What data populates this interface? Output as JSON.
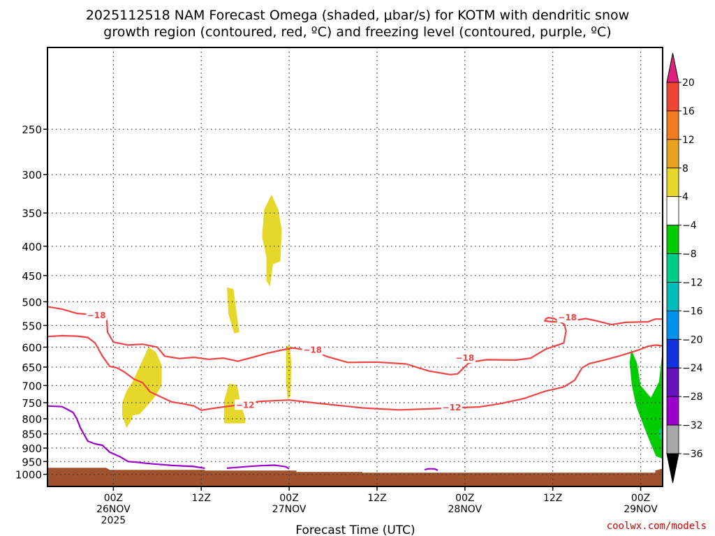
{
  "title": {
    "line1": "2025112518 NAM Forecast Omega (shaded, μbar/s) for KOTM with dendritic snow",
    "line2": "growth region (contoured, red, ºC) and freezing level (contoured, purple, ºC)"
  },
  "credit": "coolwx.com/models",
  "colors": {
    "dendritic_contour": "#ee4444",
    "freezing_contour": "#9900cc",
    "ground": "#a0522d",
    "omega_pos_4_8": "#e6d82a",
    "omega_neg_4_8": "#00cc00",
    "omega_neg_8_12": "#00cc88"
  },
  "chart_data": {
    "type": "heatmap",
    "xlabel": "Forecast Time (UTC)",
    "ylabel": "",
    "x_axis": {
      "units": "hours since 2025-11-25 18Z",
      "range": [
        -3,
        81
      ],
      "ticks": [
        {
          "hour": 6,
          "line1": "00Z",
          "line2": "26NOV",
          "line3": "2025"
        },
        {
          "hour": 18,
          "line1": "12Z",
          "line2": "",
          "line3": ""
        },
        {
          "hour": 30,
          "line1": "00Z",
          "line2": "27NOV",
          "line3": ""
        },
        {
          "hour": 42,
          "line1": "12Z",
          "line2": "",
          "line3": ""
        },
        {
          "hour": 54,
          "line1": "00Z",
          "line2": "28NOV",
          "line3": ""
        },
        {
          "hour": 66,
          "line1": "12Z",
          "line2": "",
          "line3": ""
        },
        {
          "hour": 78,
          "line1": "00Z",
          "line2": "29NOV",
          "line3": ""
        }
      ]
    },
    "y_axis": {
      "units": "hPa",
      "scale": "log",
      "inverted": true,
      "range": [
        1050,
        180
      ],
      "ticks": [
        250,
        300,
        350,
        400,
        450,
        500,
        550,
        600,
        650,
        700,
        750,
        800,
        850,
        900,
        950,
        1000
      ]
    },
    "grid": true,
    "colorbar": {
      "labels": [
        "20",
        "16",
        "12",
        "8",
        "4",
        "−4",
        "−8",
        "−12",
        "−16",
        "−20",
        "−24",
        "−28",
        "−32",
        "−36"
      ],
      "levels": [
        {
          "from": 20,
          "to": null,
          "color": "#e0207e"
        },
        {
          "from": 16,
          "to": 20,
          "color": "#ef4535"
        },
        {
          "from": 12,
          "to": 16,
          "color": "#f07b22"
        },
        {
          "from": 8,
          "to": 12,
          "color": "#e8a322"
        },
        {
          "from": 4,
          "to": 8,
          "color": "#e6d82a"
        },
        {
          "from": -4,
          "to": 4,
          "color": "#ffffff"
        },
        {
          "from": -8,
          "to": -4,
          "color": "#00cc00"
        },
        {
          "from": -12,
          "to": -8,
          "color": "#00cc88"
        },
        {
          "from": -16,
          "to": -12,
          "color": "#00bbbb"
        },
        {
          "from": -20,
          "to": -16,
          "color": "#0090ee"
        },
        {
          "from": -24,
          "to": -20,
          "color": "#1133dd"
        },
        {
          "from": -28,
          "to": -24,
          "color": "#6611bb"
        },
        {
          "from": -32,
          "to": -28,
          "color": "#9900cc"
        },
        {
          "from": -36,
          "to": -32,
          "color": "#a8a8a8"
        },
        {
          "from": null,
          "to": -36,
          "color": "#000000"
        }
      ]
    },
    "shaded_regions": [
      {
        "name": "omega-plus-4-near-26nov-03z",
        "level": "4 to 8",
        "color": "#e6d82a",
        "points": [
          [
            7.8,
            830
          ],
          [
            7.2,
            790
          ],
          [
            7.2,
            750
          ],
          [
            7.8,
            715
          ],
          [
            8.6,
            690
          ],
          [
            9.8,
            640
          ],
          [
            10.8,
            600
          ],
          [
            11.8,
            612
          ],
          [
            12.6,
            645
          ],
          [
            12.6,
            700
          ],
          [
            11.6,
            735
          ],
          [
            10.4,
            765
          ],
          [
            9.6,
            785
          ],
          [
            8.6,
            790
          ],
          [
            8.6,
            800
          ],
          [
            7.8,
            830
          ]
        ]
      },
      {
        "name": "omega-plus-4-near-26nov-15z",
        "level": "4 to 8",
        "color": "#e6d82a",
        "points": [
          [
            21.5,
            472
          ],
          [
            22.4,
            475
          ],
          [
            23.1,
            555
          ],
          [
            23.2,
            565
          ],
          [
            22.5,
            568
          ],
          [
            21.7,
            525
          ],
          [
            21.5,
            472
          ]
        ]
      },
      {
        "name": "omega-plus-4-near-26nov-16z-low",
        "level": "4 to 8",
        "color": "#e6d82a",
        "points": [
          [
            21.8,
            695
          ],
          [
            22.9,
            698
          ],
          [
            23.3,
            745
          ],
          [
            24.0,
            800
          ],
          [
            24.0,
            815
          ],
          [
            21.1,
            815
          ],
          [
            21.1,
            745
          ],
          [
            21.8,
            695
          ]
        ]
      },
      {
        "name": "omega-plus-4-near-26nov-22z-upper",
        "level": "4 to 8",
        "color": "#e6d82a",
        "points": [
          [
            27.6,
            325
          ],
          [
            28.5,
            345
          ],
          [
            29.0,
            375
          ],
          [
            28.8,
            425
          ],
          [
            27.8,
            430
          ],
          [
            27.4,
            470
          ],
          [
            26.9,
            460
          ],
          [
            26.9,
            418
          ],
          [
            26.3,
            385
          ],
          [
            26.6,
            345
          ],
          [
            27.6,
            325
          ]
        ]
      },
      {
        "name": "omega-plus-4-near-27nov-00z",
        "level": "4 to 8",
        "color": "#e6d82a",
        "points": [
          [
            29.6,
            597
          ],
          [
            30.1,
            597
          ],
          [
            30.3,
            640
          ],
          [
            30.2,
            730
          ],
          [
            29.8,
            740
          ],
          [
            29.6,
            700
          ],
          [
            29.6,
            597
          ]
        ]
      },
      {
        "name": "omega-minus-4-near-29nov-00z",
        "level": "-4 to -8",
        "color": "#00cc00",
        "points": [
          [
            76.7,
            605
          ],
          [
            77.5,
            640
          ],
          [
            78.0,
            700
          ],
          [
            79.4,
            735
          ],
          [
            80.5,
            690
          ],
          [
            80.9,
            620
          ],
          [
            81.0,
            620
          ],
          [
            81.0,
            940
          ],
          [
            80.1,
            930
          ],
          [
            79.3,
            880
          ],
          [
            78.2,
            810
          ],
          [
            77.4,
            760
          ],
          [
            76.8,
            700
          ],
          [
            76.5,
            640
          ],
          [
            76.7,
            605
          ]
        ]
      },
      {
        "name": "omega-minus-8-near-29nov-04z",
        "level": "-8 to -12",
        "color": "#00cc88",
        "points": [
          [
            80.5,
            835
          ],
          [
            81.0,
            828
          ],
          [
            81.0,
            870
          ],
          [
            80.6,
            868
          ],
          [
            80.5,
            835
          ]
        ]
      }
    ],
    "ground": {
      "description": "terrain below station level",
      "top_pressure": 985
    },
    "contours": [
      {
        "name": "dendritic-minus-18",
        "value": -18,
        "color": "#ee4444",
        "label_text": "−18",
        "label_points": [
          [
            3.7,
            528
          ],
          [
            33.2,
            607
          ],
          [
            54.0,
            627
          ],
          [
            68.0,
            533
          ]
        ],
        "segments": [
          [
            [
              -3,
              510
            ],
            [
              -1,
              515
            ],
            [
              1,
              524
            ],
            [
              3,
              526
            ],
            [
              5,
              528
            ],
            [
              5.1,
              540
            ],
            [
              5.2,
              565
            ],
            [
              6.0,
              588
            ],
            [
              8.0,
              595
            ],
            [
              10.0,
              593
            ],
            [
              12.0,
              600
            ],
            [
              13.0,
              622
            ],
            [
              15.0,
              628
            ],
            [
              17.0,
              625
            ],
            [
              19.0,
              630
            ],
            [
              21.0,
              627
            ],
            [
              23.0,
              635
            ],
            [
              25.0,
              625
            ],
            [
              27.0,
              615
            ],
            [
              29.0,
              607
            ],
            [
              30.5,
              602
            ],
            [
              32.0,
              606
            ],
            [
              33.2,
              607
            ],
            [
              35.0,
              622
            ],
            [
              38.0,
              638
            ],
            [
              42.0,
              637
            ],
            [
              46.0,
              642
            ],
            [
              49.0,
              660
            ],
            [
              52.0,
              670
            ],
            [
              53.0,
              668
            ],
            [
              54.5,
              640
            ],
            [
              55.5,
              635
            ],
            [
              57.0,
              631
            ],
            [
              61.0,
              632
            ],
            [
              63.0,
              627
            ],
            [
              65.0,
              605
            ],
            [
              67.5,
              590
            ],
            [
              67.8,
              563
            ],
            [
              67.6,
              548
            ],
            [
              66.2,
              535
            ],
            [
              65.4,
              533
            ],
            [
              65.1,
              535
            ],
            [
              64.9,
              540
            ],
            [
              66.0,
              542
            ],
            [
              67.5,
              542
            ],
            [
              68.5,
              540
            ],
            [
              70.5,
              535
            ],
            [
              72.0,
              540
            ],
            [
              74.0,
              548
            ],
            [
              76.0,
              543
            ],
            [
              79.0,
              542
            ],
            [
              80.0,
              536
            ],
            [
              81.0,
              536
            ]
          ]
        ]
      },
      {
        "name": "dendritic-minus-12",
        "value": -12,
        "color": "#ee4444",
        "label_text": "−12",
        "label_points": [
          [
            24.0,
            757
          ],
          [
            52.2,
            765
          ]
        ],
        "segments": [
          [
            [
              -3,
              575
            ],
            [
              -1,
              573
            ],
            [
              1,
              574
            ],
            [
              2.5,
              577
            ],
            [
              3.5,
              590
            ],
            [
              4.5,
              622
            ],
            [
              5.5,
              648
            ],
            [
              6.5,
              652
            ],
            [
              7.5,
              663
            ],
            [
              8.8,
              682
            ],
            [
              10.0,
              692
            ],
            [
              11.0,
              718
            ],
            [
              13.0,
              738
            ],
            [
              14.0,
              748
            ],
            [
              15.5,
              753
            ],
            [
              17.0,
              760
            ],
            [
              18.0,
              773
            ],
            [
              20.0,
              766
            ],
            [
              23.0,
              757
            ],
            [
              26.0,
              746
            ],
            [
              30.0,
              742
            ],
            [
              34.0,
              752
            ],
            [
              40.0,
              766
            ],
            [
              45.0,
              772
            ],
            [
              49.0,
              769
            ],
            [
              53.0,
              765
            ],
            [
              56.0,
              763
            ],
            [
              59.0,
              752
            ],
            [
              62.0,
              738
            ],
            [
              65.0,
              716
            ],
            [
              67.5,
              704
            ],
            [
              69.0,
              685
            ],
            [
              70.0,
              652
            ],
            [
              71.0,
              641
            ],
            [
              73.0,
              632
            ],
            [
              75.0,
              622
            ],
            [
              77.0,
              611
            ],
            [
              78.0,
              605
            ],
            [
              79.0,
              598
            ],
            [
              80.0,
              595
            ],
            [
              81.0,
              597
            ]
          ]
        ]
      },
      {
        "name": "freezing-level-0",
        "value": 0,
        "color": "#9900cc",
        "label_text": "",
        "label_points": [],
        "segments": [
          [
            [
              -3,
              760
            ],
            [
              -1,
              762
            ],
            [
              0.5,
              780
            ],
            [
              1.0,
              800
            ],
            [
              1.5,
              830
            ],
            [
              2.5,
              875
            ],
            [
              3.5,
              885
            ],
            [
              4.5,
              890
            ],
            [
              5.5,
              915
            ],
            [
              7.0,
              933
            ],
            [
              8.0,
              950
            ],
            [
              9.0,
              952
            ],
            [
              11.0,
              958
            ],
            [
              14.0,
              965
            ],
            [
              17.0,
              969
            ],
            [
              18.5,
              976
            ]
          ],
          [
            [
              21.5,
              976
            ],
            [
              24.0,
              970
            ],
            [
              26.0,
              966
            ],
            [
              28.0,
              964
            ],
            [
              29.5,
              970
            ],
            [
              30.0,
              978
            ]
          ],
          [
            [
              48.5,
              982
            ],
            [
              49.0,
              978
            ],
            [
              49.8,
              978
            ],
            [
              50.3,
              984
            ]
          ]
        ]
      }
    ]
  }
}
